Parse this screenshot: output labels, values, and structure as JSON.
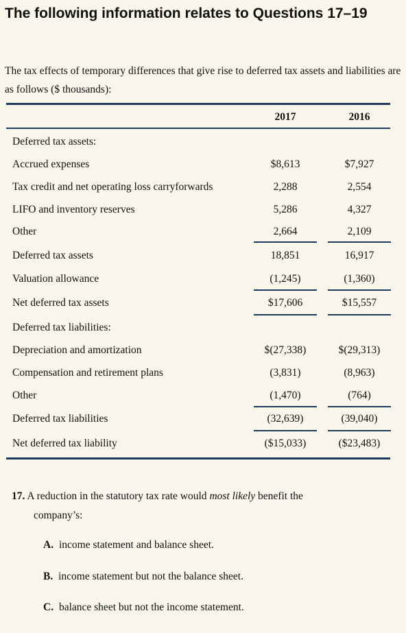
{
  "heading": "The following information relates to Questions 17–19",
  "intro": "The tax effects of temporary differences that give rise to deferred tax assets and liabilities are as follows ($ thousands):",
  "table": {
    "col_2017": "2017",
    "col_2016": "2016",
    "rows": [
      {
        "label": "Deferred tax assets:",
        "v2017": "",
        "v2016": ""
      },
      {
        "label": "Accrued expenses",
        "v2017": "$8,613",
        "v2016": "$7,927"
      },
      {
        "label": "Tax credit and net operating loss carryforwards",
        "v2017": "2,288",
        "v2016": "2,554"
      },
      {
        "label": "LIFO and inventory reserves",
        "v2017": "5,286",
        "v2016": "4,327"
      },
      {
        "label": "Other",
        "v2017": "2,664",
        "v2016": "2,109"
      },
      {
        "label": "Deferred tax assets",
        "v2017": "18,851",
        "v2016": "16,917"
      },
      {
        "label": "Valuation allowance",
        "v2017": "(1,245)",
        "v2016": "(1,360)"
      },
      {
        "label": "Net deferred tax assets",
        "v2017": "$17,606",
        "v2016": "$15,557"
      },
      {
        "label": "Deferred tax liabilities:",
        "v2017": "",
        "v2016": ""
      },
      {
        "label": "Depreciation and amortization",
        "v2017": "$(27,338)",
        "v2016": "$(29,313)"
      },
      {
        "label": "Compensation and retirement plans",
        "v2017": "(3,831)",
        "v2016": "(8,963)"
      },
      {
        "label": "Other",
        "v2017": "(1,470)",
        "v2016": "(764)"
      },
      {
        "label": "Deferred tax liabilities",
        "v2017": "(32,639)",
        "v2016": "(39,040)"
      },
      {
        "label": "Net deferred tax liability",
        "v2017": "($15,033)",
        "v2016": "($23,483)"
      }
    ]
  },
  "question": {
    "number": "17.",
    "text_before": "A reduction in the statutory tax rate would ",
    "emphasis": "most likely",
    "text_after": " benefit the",
    "text_line2": "company’s:",
    "options": [
      {
        "letter": "A.",
        "text": "income statement and balance sheet."
      },
      {
        "letter": "B.",
        "text": "income statement but not the balance sheet."
      },
      {
        "letter": "C.",
        "text": "balance sheet but not the income statement."
      }
    ]
  }
}
